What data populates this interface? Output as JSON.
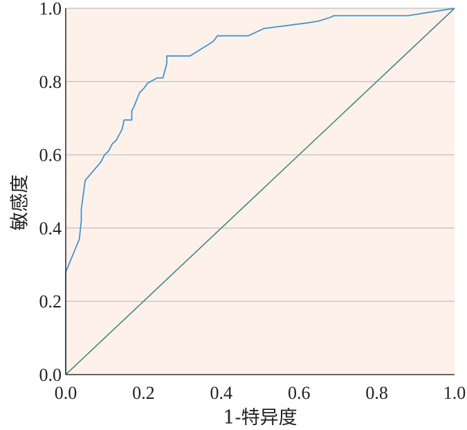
{
  "colors": {
    "plot_background": "#fdf1ea",
    "grid": "#c8c8c8",
    "roc_curve": "#3a96d6",
    "reference_line": "#3f8a80",
    "axis": "#333333"
  },
  "chart_data": {
    "type": "line",
    "title": "",
    "xlabel": "1-特异度",
    "ylabel": "敏感度",
    "xlim": [
      0,
      1
    ],
    "ylim": [
      0,
      1
    ],
    "grid": "horizontal",
    "x_ticks": [
      "0.0",
      "0.2",
      "0.4",
      "0.6",
      "0.8",
      "1.0"
    ],
    "y_ticks": [
      "0.0",
      "0.2",
      "0.4",
      "0.6",
      "0.8",
      "1.0"
    ],
    "series": [
      {
        "x": [
          0.0,
          0.0,
          0.0,
          0.035,
          0.04,
          0.04,
          0.045,
          0.05,
          0.09,
          0.1,
          0.11,
          0.12,
          0.13,
          0.145,
          0.15,
          0.17,
          0.17,
          0.175,
          0.19,
          0.2,
          0.21,
          0.235,
          0.25,
          0.26,
          0.26,
          0.27,
          0.32,
          0.38,
          0.39,
          0.47,
          0.5,
          0.51,
          0.62,
          0.65,
          0.68,
          0.69,
          0.88,
          1.0
        ],
        "y": [
          0.0,
          0.28,
          0.28,
          0.37,
          0.42,
          0.45,
          0.49,
          0.53,
          0.58,
          0.6,
          0.61,
          0.63,
          0.64,
          0.67,
          0.695,
          0.695,
          0.72,
          0.73,
          0.77,
          0.78,
          0.795,
          0.81,
          0.81,
          0.85,
          0.87,
          0.87,
          0.87,
          0.91,
          0.925,
          0.925,
          0.94,
          0.945,
          0.96,
          0.965,
          0.975,
          0.98,
          0.98,
          1.0
        ]
      },
      {
        "x": [
          0,
          1
        ],
        "y": [
          0,
          1
        ]
      }
    ]
  }
}
